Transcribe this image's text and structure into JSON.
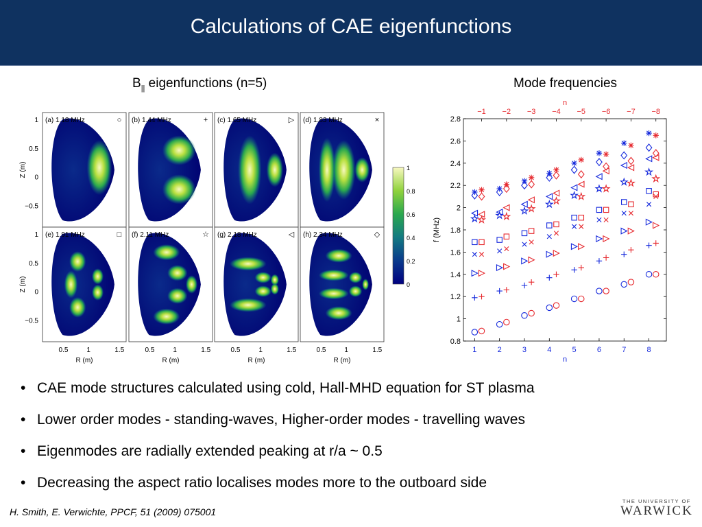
{
  "slide": {
    "title": "Calculations of CAE eigenfunctions",
    "left_caption_prefix": "B",
    "left_caption_sub": "||",
    "left_caption_rest": " eigenfunctions (n=5)",
    "right_caption": "Mode frequencies",
    "bullets": [
      "CAE mode structures calculated using cold, Hall-MHD equation for ST plasma",
      "Lower order modes - standing-waves, Higher-order modes - travelling waves",
      "Eigenmodes are radially extended peaking at r/a ~ 0.5",
      "Decreasing the aspect ratio localises modes more to the outboard side"
    ],
    "bullet_glyph": "•",
    "citation": "H. Smith, E. Verwichte, PPCF, 51 (2009) 075001",
    "logo_line1": "THE UNIVERSITY OF",
    "logo_line2": "WARWICK"
  },
  "chart_data": [
    {
      "type": "heatmap",
      "panels": [
        {
          "label": "(a) 1.18 MHz",
          "marker": "○"
        },
        {
          "label": "(b) 1.44 MHz",
          "marker": "+"
        },
        {
          "label": "(c) 1.65 MHz",
          "marker": "▷"
        },
        {
          "label": "(d) 1.83 MHz",
          "marker": "×"
        },
        {
          "label": "(e) 1.91 MHz",
          "marker": "□"
        },
        {
          "label": "(f) 2.11 MHz",
          "marker": "☆"
        },
        {
          "label": "(g) 2.18 MHz",
          "marker": "◁"
        },
        {
          "label": "(h) 2.34 MHz",
          "marker": "◇"
        }
      ],
      "xlabel": "R (m)",
      "ylabel": "Z (m)",
      "xticks": [
        "0.5",
        "1",
        "1.5"
      ],
      "yticks": [
        "1",
        "0.5",
        "0",
        "−0.5"
      ],
      "colorbar_ticks": [
        "1",
        "0.8",
        "0.6",
        "0.4",
        "0.2",
        "0"
      ],
      "colormap": [
        "#000080",
        "#0a3a8c",
        "#137a82",
        "#2aa84e",
        "#8fd23c",
        "#f8f8c0"
      ]
    },
    {
      "type": "scatter",
      "xlabel": "n",
      "ylabel": "f (MHz)",
      "top_xlabel": "n",
      "x_ticks": [
        "1",
        "2",
        "3",
        "4",
        "5",
        "6",
        "7",
        "8"
      ],
      "top_x_ticks": [
        "−1",
        "−2",
        "−3",
        "−4",
        "−5",
        "−6",
        "−7",
        "−8"
      ],
      "y_ticks": [
        "0.8",
        "1",
        "1.2",
        "1.4",
        "1.6",
        "1.8",
        "2",
        "2.2",
        "2.4",
        "2.6",
        "2.8"
      ],
      "xlim": [
        0.55,
        8.7
      ],
      "ylim": [
        0.8,
        2.8
      ],
      "top_offset": 0.28,
      "blue": "#1428dc",
      "red": "#e6282d",
      "series": [
        {
          "marker": "circle",
          "blue": [
            0.88,
            0.95,
            1.03,
            1.1,
            1.18,
            1.25,
            1.31,
            1.4
          ],
          "red": [
            0.89,
            0.97,
            1.05,
            1.12,
            1.18,
            1.25,
            1.33,
            1.4
          ]
        },
        {
          "marker": "plus",
          "blue": [
            1.19,
            1.25,
            1.3,
            1.37,
            1.44,
            1.52,
            1.58,
            1.66
          ],
          "red": [
            1.2,
            1.26,
            1.33,
            1.4,
            1.46,
            1.55,
            1.62,
            1.68
          ]
        },
        {
          "marker": "triangle-right",
          "blue": [
            1.41,
            1.46,
            1.52,
            1.58,
            1.65,
            1.72,
            1.79,
            1.87
          ],
          "red": [
            1.41,
            1.47,
            1.53,
            1.59,
            1.65,
            1.72,
            1.79,
            1.84
          ]
        },
        {
          "marker": "cross",
          "blue": [
            1.58,
            1.61,
            1.67,
            1.74,
            1.83,
            1.89,
            1.95,
            2.03
          ],
          "red": [
            1.58,
            1.63,
            1.69,
            1.77,
            1.83,
            1.89,
            1.95,
            2.1
          ]
        },
        {
          "marker": "square",
          "blue": [
            1.69,
            1.71,
            1.77,
            1.84,
            1.91,
            1.98,
            2.05,
            2.15
          ],
          "red": [
            1.69,
            1.74,
            1.79,
            1.85,
            1.91,
            1.98,
            2.03,
            2.12
          ]
        },
        {
          "marker": "star",
          "blue": [
            1.9,
            1.93,
            1.97,
            2.03,
            2.11,
            2.17,
            2.23,
            2.32
          ],
          "red": [
            1.89,
            1.92,
            1.99,
            2.06,
            2.1,
            2.17,
            2.22,
            2.26
          ]
        },
        {
          "marker": "triangle-left",
          "blue": [
            1.95,
            1.96,
            2.03,
            2.1,
            2.18,
            2.28,
            2.38,
            2.44
          ],
          "red": [
            1.94,
            2.0,
            2.07,
            2.13,
            2.21,
            2.33,
            2.36,
            2.45
          ]
        },
        {
          "marker": "diamond",
          "blue": [
            2.11,
            2.14,
            2.2,
            2.27,
            2.34,
            2.41,
            2.47,
            2.54
          ],
          "red": [
            2.1,
            2.17,
            2.21,
            2.29,
            2.3,
            2.37,
            2.42,
            2.49
          ]
        },
        {
          "marker": "asterisk",
          "blue": [
            2.14,
            2.17,
            2.24,
            2.31,
            2.4,
            2.49,
            2.58,
            2.67
          ],
          "red": [
            2.16,
            2.21,
            2.27,
            2.34,
            2.43,
            2.48,
            2.56,
            2.65
          ]
        }
      ]
    }
  ]
}
